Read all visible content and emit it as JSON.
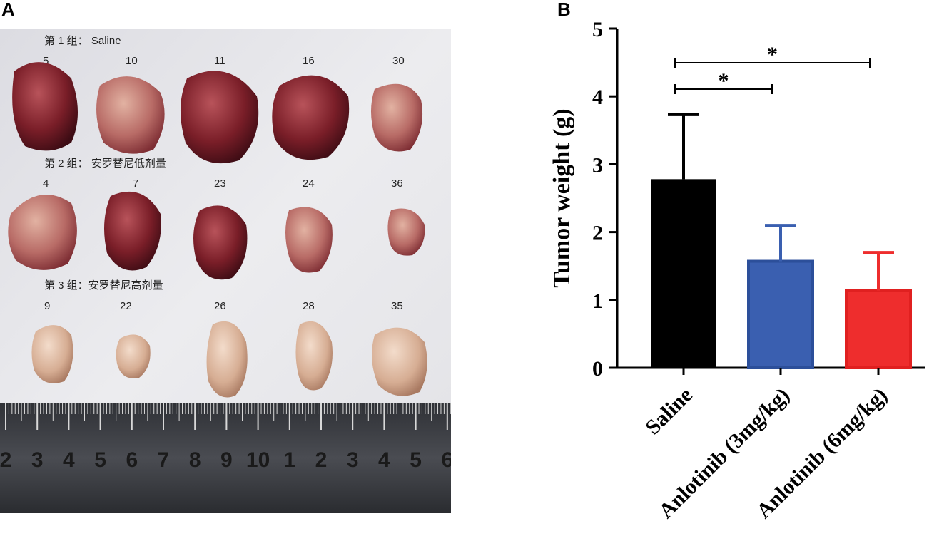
{
  "panels": {
    "a_label": "A",
    "b_label": "B"
  },
  "photo": {
    "groups": [
      {
        "label": "第 1 组： Saline",
        "ids": [
          "5",
          "10",
          "11",
          "16",
          "30"
        ]
      },
      {
        "label": "第 2 组： 安罗替尼低剂量",
        "ids": [
          "4",
          "7",
          "23",
          "24",
          "36"
        ]
      },
      {
        "label": "第 3 组：安罗替尼高剂量",
        "ids": [
          "9",
          "22",
          "26",
          "28",
          "35"
        ]
      }
    ],
    "ruler_marks": [
      "2",
      "3",
      "4",
      "5",
      "6",
      "7",
      "8",
      "9",
      "10",
      "1",
      "2",
      "3",
      "4",
      "5",
      "6"
    ],
    "colors": {
      "paper": "#e9e9ec",
      "ruler": "#3b3d42",
      "tumor_dark": "#7a1e28",
      "tumor_pale": "#d8b49c"
    }
  },
  "chart_data": {
    "type": "bar",
    "categories": [
      "Saline",
      "Anlotinib (3mg/kg)",
      "Anlotinib (6mg/kg)"
    ],
    "values": [
      2.78,
      1.57,
      1.14
    ],
    "errors": [
      0.95,
      0.53,
      0.56
    ],
    "ylabel": "Tumor weight (g)",
    "ylim": [
      0,
      5
    ],
    "yticks": [
      "0",
      "1",
      "2",
      "3",
      "4",
      "5"
    ],
    "colors": [
      "#000000",
      "#3a5fb0",
      "#ee2d2d"
    ],
    "significance": [
      {
        "from": 0,
        "to": 1,
        "label": "*"
      },
      {
        "from": 0,
        "to": 2,
        "label": "*"
      }
    ]
  }
}
